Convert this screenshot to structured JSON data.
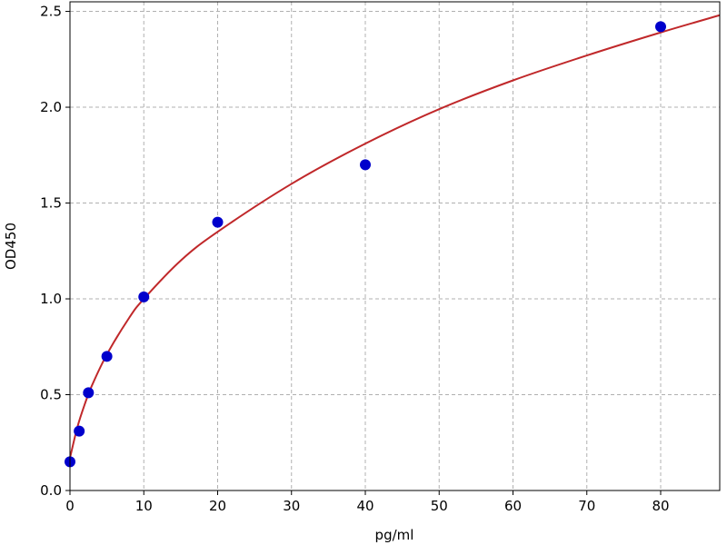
{
  "chart_data": {
    "type": "scatter",
    "title": "",
    "xlabel": "pg/ml",
    "ylabel": "OD450",
    "xlim": [
      0,
      88
    ],
    "ylim": [
      0,
      2.55
    ],
    "x_ticks": [
      0,
      10,
      20,
      30,
      40,
      50,
      60,
      70,
      80
    ],
    "y_ticks": [
      0.0,
      0.5,
      1.0,
      1.5,
      2.0,
      2.5
    ],
    "x_tick_labels": [
      "0",
      "10",
      "20",
      "30",
      "40",
      "50",
      "60",
      "70",
      "80"
    ],
    "y_tick_labels": [
      "0.0",
      "0.5",
      "1.0",
      "1.5",
      "2.0",
      "2.5"
    ],
    "grid": true,
    "series": [
      {
        "kind": "points",
        "color": "#0000cc",
        "x": [
          0,
          1.25,
          2.5,
          5,
          10,
          20,
          40,
          80
        ],
        "y": [
          0.15,
          0.31,
          0.51,
          0.7,
          1.01,
          1.4,
          1.7,
          2.42
        ]
      },
      {
        "kind": "fitted-curve",
        "color": "#c0282a",
        "x": [
          0,
          1,
          2,
          3,
          5,
          8,
          10,
          15,
          20,
          30,
          40,
          50,
          60,
          70,
          80,
          88
        ],
        "y": [
          0.17,
          0.33,
          0.45,
          0.55,
          0.71,
          0.9,
          1.0,
          1.2,
          1.35,
          1.6,
          1.81,
          1.99,
          2.14,
          2.27,
          2.39,
          2.48
        ]
      }
    ]
  }
}
